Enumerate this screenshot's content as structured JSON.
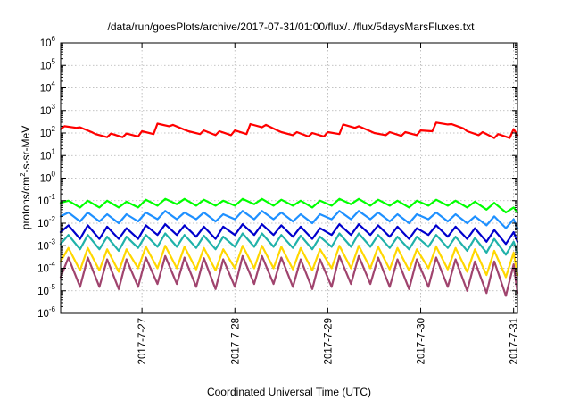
{
  "chart_data": {
    "type": "line",
    "title": "/data/run/goesPlots/archive/2017-07-31/01:00/flux/../flux/5daysMarsFluxes.txt",
    "xlabel": "Coordinated Universal Time (UTC)",
    "ylabel": "protons/cm2-s-sr-MeV",
    "ylabel_parts": {
      "before": "protons/cm",
      "sup": "2",
      "after": "-s-sr-MeV"
    },
    "yscale": "log",
    "ylim": [
      1e-06,
      1000000.0
    ],
    "y_ticks": [
      {
        "base": "10",
        "exp": "6"
      },
      {
        "base": "10",
        "exp": "5"
      },
      {
        "base": "10",
        "exp": "4"
      },
      {
        "base": "10",
        "exp": "3"
      },
      {
        "base": "10",
        "exp": "2"
      },
      {
        "base": "10",
        "exp": "1"
      },
      {
        "base": "10",
        "exp": "0"
      },
      {
        "base": "10",
        "exp": "-1"
      },
      {
        "base": "10",
        "exp": "-2"
      },
      {
        "base": "10",
        "exp": "-3"
      },
      {
        "base": "10",
        "exp": "-4"
      },
      {
        "base": "10",
        "exp": "-5"
      },
      {
        "base": "10",
        "exp": "-6"
      }
    ],
    "xlim": [
      "2017-07-26T03:00",
      "2017-07-31T01:00"
    ],
    "x_ticks": [
      "2017-7-27",
      "2017-7-28",
      "2017-7-29",
      "2017-7-30",
      "2017-7-31"
    ],
    "grid": true,
    "series": [
      {
        "color": "#ff0000",
        "x": [
          "2017-07-26T03:00",
          "2017-07-26T04:00",
          "2017-07-26T07:00",
          "2017-07-26T08:00",
          "2017-07-26T11:00",
          "2017-07-26T12:00",
          "2017-07-26T15:00",
          "2017-07-26T16:00",
          "2017-07-26T19:00",
          "2017-07-26T20:00",
          "2017-07-26T23:00",
          "2017-07-27T00:00",
          "2017-07-27T03:00",
          "2017-07-27T04:00",
          "2017-07-27T07:00",
          "2017-07-27T08:00",
          "2017-07-27T11:00",
          "2017-07-27T12:00",
          "2017-07-27T15:00",
          "2017-07-27T16:00",
          "2017-07-27T19:00",
          "2017-07-27T20:00",
          "2017-07-27T23:00",
          "2017-07-28T00:00",
          "2017-07-28T03:00",
          "2017-07-28T04:00",
          "2017-07-28T07:00",
          "2017-07-28T08:00",
          "2017-07-28T11:00",
          "2017-07-28T12:00",
          "2017-07-28T15:00",
          "2017-07-28T16:00",
          "2017-07-28T19:00",
          "2017-07-28T20:00",
          "2017-07-28T23:00",
          "2017-07-29T00:00",
          "2017-07-29T03:00",
          "2017-07-29T04:00",
          "2017-07-29T07:00",
          "2017-07-29T08:00",
          "2017-07-29T11:00",
          "2017-07-29T12:00",
          "2017-07-29T15:00",
          "2017-07-29T16:00",
          "2017-07-29T19:00",
          "2017-07-29T20:00",
          "2017-07-29T23:00",
          "2017-07-30T00:00",
          "2017-07-30T03:00",
          "2017-07-30T04:00",
          "2017-07-30T07:00",
          "2017-07-30T08:00",
          "2017-07-30T11:00",
          "2017-07-30T12:00",
          "2017-07-30T15:00",
          "2017-07-30T16:00",
          "2017-07-30T19:00",
          "2017-07-30T20:00",
          "2017-07-30T23:00",
          "2017-07-31T00:00",
          "2017-07-31T01:00"
        ],
        "values": [
          150,
          200,
          170,
          180,
          110,
          90,
          65,
          95,
          65,
          95,
          70,
          120,
          90,
          260,
          200,
          230,
          140,
          120,
          90,
          130,
          80,
          120,
          80,
          130,
          90,
          250,
          180,
          230,
          130,
          110,
          80,
          110,
          70,
          100,
          70,
          110,
          90,
          240,
          170,
          200,
          120,
          100,
          80,
          110,
          75,
          110,
          80,
          130,
          120,
          290,
          240,
          250,
          160,
          120,
          80,
          110,
          60,
          90,
          60,
          150,
          80
        ]
      },
      {
        "color": "#00ff00",
        "x": [
          "2017-07-26T03:00",
          "2017-07-26T05:00",
          "2017-07-26T08:00",
          "2017-07-26T10:00",
          "2017-07-26T13:00",
          "2017-07-26T15:00",
          "2017-07-26T18:00",
          "2017-07-26T20:00",
          "2017-07-26T23:00",
          "2017-07-27T01:00",
          "2017-07-27T04:00",
          "2017-07-27T06:00",
          "2017-07-27T09:00",
          "2017-07-27T11:00",
          "2017-07-27T14:00",
          "2017-07-27T16:00",
          "2017-07-27T19:00",
          "2017-07-27T21:00",
          "2017-07-28T00:00",
          "2017-07-28T02:00",
          "2017-07-28T05:00",
          "2017-07-28T07:00",
          "2017-07-28T10:00",
          "2017-07-28T12:00",
          "2017-07-28T15:00",
          "2017-07-28T17:00",
          "2017-07-28T20:00",
          "2017-07-28T22:00",
          "2017-07-29T01:00",
          "2017-07-29T03:00",
          "2017-07-29T06:00",
          "2017-07-29T08:00",
          "2017-07-29T11:00",
          "2017-07-29T13:00",
          "2017-07-29T16:00",
          "2017-07-29T18:00",
          "2017-07-29T21:00",
          "2017-07-29T23:00",
          "2017-07-30T02:00",
          "2017-07-30T04:00",
          "2017-07-30T07:00",
          "2017-07-30T09:00",
          "2017-07-30T12:00",
          "2017-07-30T14:00",
          "2017-07-30T17:00",
          "2017-07-30T19:00",
          "2017-07-30T22:00",
          "2017-07-31T00:00",
          "2017-07-31T01:00"
        ],
        "values": [
          0.08,
          0.1,
          0.05,
          0.1,
          0.05,
          0.1,
          0.05,
          0.09,
          0.05,
          0.11,
          0.06,
          0.12,
          0.07,
          0.12,
          0.06,
          0.11,
          0.06,
          0.1,
          0.06,
          0.12,
          0.07,
          0.12,
          0.06,
          0.11,
          0.06,
          0.1,
          0.05,
          0.1,
          0.06,
          0.12,
          0.07,
          0.12,
          0.06,
          0.11,
          0.06,
          0.1,
          0.05,
          0.1,
          0.06,
          0.11,
          0.06,
          0.1,
          0.05,
          0.09,
          0.04,
          0.08,
          0.03,
          0.05,
          0.03
        ]
      },
      {
        "color": "#1e90ff",
        "x": [
          "2017-07-26T03:00",
          "2017-07-26T05:00",
          "2017-07-26T08:00",
          "2017-07-26T10:00",
          "2017-07-26T13:00",
          "2017-07-26T15:00",
          "2017-07-26T18:00",
          "2017-07-26T20:00",
          "2017-07-26T23:00",
          "2017-07-27T01:00",
          "2017-07-27T04:00",
          "2017-07-27T06:00",
          "2017-07-27T09:00",
          "2017-07-27T11:00",
          "2017-07-27T14:00",
          "2017-07-27T16:00",
          "2017-07-27T19:00",
          "2017-07-27T21:00",
          "2017-07-28T00:00",
          "2017-07-28T02:00",
          "2017-07-28T05:00",
          "2017-07-28T07:00",
          "2017-07-28T10:00",
          "2017-07-28T12:00",
          "2017-07-28T15:00",
          "2017-07-28T17:00",
          "2017-07-28T20:00",
          "2017-07-28T22:00",
          "2017-07-29T01:00",
          "2017-07-29T03:00",
          "2017-07-29T06:00",
          "2017-07-29T08:00",
          "2017-07-29T11:00",
          "2017-07-29T13:00",
          "2017-07-29T16:00",
          "2017-07-29T18:00",
          "2017-07-29T21:00",
          "2017-07-29T23:00",
          "2017-07-30T02:00",
          "2017-07-30T04:00",
          "2017-07-30T07:00",
          "2017-07-30T09:00",
          "2017-07-30T12:00",
          "2017-07-30T14:00",
          "2017-07-30T17:00",
          "2017-07-30T19:00",
          "2017-07-30T22:00",
          "2017-07-31T00:00",
          "2017-07-31T01:00"
        ],
        "values": [
          0.02,
          0.03,
          0.012,
          0.03,
          0.012,
          0.025,
          0.01,
          0.025,
          0.012,
          0.03,
          0.015,
          0.035,
          0.015,
          0.03,
          0.015,
          0.03,
          0.012,
          0.025,
          0.015,
          0.035,
          0.015,
          0.035,
          0.015,
          0.03,
          0.012,
          0.025,
          0.01,
          0.025,
          0.015,
          0.035,
          0.015,
          0.035,
          0.015,
          0.03,
          0.012,
          0.025,
          0.01,
          0.025,
          0.015,
          0.03,
          0.012,
          0.025,
          0.01,
          0.02,
          0.008,
          0.02,
          0.006,
          0.015,
          0.006
        ]
      },
      {
        "color": "#0000cd",
        "x": [
          "2017-07-26T03:00",
          "2017-07-26T05:00",
          "2017-07-26T08:00",
          "2017-07-26T10:00",
          "2017-07-26T13:00",
          "2017-07-26T15:00",
          "2017-07-26T18:00",
          "2017-07-26T20:00",
          "2017-07-26T23:00",
          "2017-07-27T01:00",
          "2017-07-27T04:00",
          "2017-07-27T06:00",
          "2017-07-27T09:00",
          "2017-07-27T11:00",
          "2017-07-27T14:00",
          "2017-07-27T16:00",
          "2017-07-27T19:00",
          "2017-07-27T21:00",
          "2017-07-28T00:00",
          "2017-07-28T02:00",
          "2017-07-28T05:00",
          "2017-07-28T07:00",
          "2017-07-28T10:00",
          "2017-07-28T12:00",
          "2017-07-28T15:00",
          "2017-07-28T17:00",
          "2017-07-28T20:00",
          "2017-07-28T22:00",
          "2017-07-29T01:00",
          "2017-07-29T03:00",
          "2017-07-29T06:00",
          "2017-07-29T08:00",
          "2017-07-29T11:00",
          "2017-07-29T13:00",
          "2017-07-29T16:00",
          "2017-07-29T18:00",
          "2017-07-29T21:00",
          "2017-07-29T23:00",
          "2017-07-30T02:00",
          "2017-07-30T04:00",
          "2017-07-30T07:00",
          "2017-07-30T09:00",
          "2017-07-30T12:00",
          "2017-07-30T14:00",
          "2017-07-30T17:00",
          "2017-07-30T19:00",
          "2017-07-30T22:00",
          "2017-07-31T00:00",
          "2017-07-31T01:00"
        ],
        "values": [
          0.004,
          0.008,
          0.002,
          0.008,
          0.002,
          0.007,
          0.002,
          0.006,
          0.002,
          0.008,
          0.003,
          0.009,
          0.003,
          0.008,
          0.0025,
          0.007,
          0.002,
          0.007,
          0.003,
          0.009,
          0.003,
          0.009,
          0.003,
          0.008,
          0.0025,
          0.007,
          0.002,
          0.006,
          0.003,
          0.009,
          0.003,
          0.009,
          0.003,
          0.008,
          0.0025,
          0.007,
          0.002,
          0.006,
          0.003,
          0.008,
          0.0025,
          0.007,
          0.002,
          0.006,
          0.0015,
          0.005,
          0.0012,
          0.004,
          0.0015
        ]
      },
      {
        "color": "#20b2aa",
        "x": [
          "2017-07-26T03:00",
          "2017-07-26T05:00",
          "2017-07-26T08:00",
          "2017-07-26T10:00",
          "2017-07-26T13:00",
          "2017-07-26T15:00",
          "2017-07-26T18:00",
          "2017-07-26T20:00",
          "2017-07-26T23:00",
          "2017-07-27T01:00",
          "2017-07-27T04:00",
          "2017-07-27T06:00",
          "2017-07-27T09:00",
          "2017-07-27T11:00",
          "2017-07-27T14:00",
          "2017-07-27T16:00",
          "2017-07-27T19:00",
          "2017-07-27T21:00",
          "2017-07-28T00:00",
          "2017-07-28T02:00",
          "2017-07-28T05:00",
          "2017-07-28T07:00",
          "2017-07-28T10:00",
          "2017-07-28T12:00",
          "2017-07-28T15:00",
          "2017-07-28T17:00",
          "2017-07-28T20:00",
          "2017-07-28T22:00",
          "2017-07-29T01:00",
          "2017-07-29T03:00",
          "2017-07-29T06:00",
          "2017-07-29T08:00",
          "2017-07-29T11:00",
          "2017-07-29T13:00",
          "2017-07-29T16:00",
          "2017-07-29T18:00",
          "2017-07-29T21:00",
          "2017-07-29T23:00",
          "2017-07-30T02:00",
          "2017-07-30T04:00",
          "2017-07-30T07:00",
          "2017-07-30T09:00",
          "2017-07-30T12:00",
          "2017-07-30T14:00",
          "2017-07-30T17:00",
          "2017-07-30T19:00",
          "2017-07-30T22:00",
          "2017-07-31T00:00",
          "2017-07-31T01:00"
        ],
        "values": [
          0.0012,
          0.003,
          0.0007,
          0.003,
          0.0007,
          0.0025,
          0.0006,
          0.0025,
          0.0008,
          0.003,
          0.0009,
          0.0035,
          0.0009,
          0.003,
          0.0008,
          0.0028,
          0.0007,
          0.0025,
          0.0009,
          0.0035,
          0.0009,
          0.0035,
          0.0009,
          0.003,
          0.0008,
          0.0028,
          0.0007,
          0.0025,
          0.0009,
          0.0035,
          0.0009,
          0.0035,
          0.0009,
          0.003,
          0.0008,
          0.0025,
          0.0007,
          0.0025,
          0.0009,
          0.003,
          0.0008,
          0.0025,
          0.0006,
          0.0022,
          0.0005,
          0.002,
          0.0004,
          0.0015,
          0.0005
        ]
      },
      {
        "color": "#ffd700",
        "x": [
          "2017-07-26T03:00",
          "2017-07-26T05:00",
          "2017-07-26T08:00",
          "2017-07-26T10:00",
          "2017-07-26T13:00",
          "2017-07-26T15:00",
          "2017-07-26T18:00",
          "2017-07-26T20:00",
          "2017-07-26T23:00",
          "2017-07-27T01:00",
          "2017-07-27T04:00",
          "2017-07-27T06:00",
          "2017-07-27T09:00",
          "2017-07-27T11:00",
          "2017-07-27T14:00",
          "2017-07-27T16:00",
          "2017-07-27T19:00",
          "2017-07-27T21:00",
          "2017-07-28T00:00",
          "2017-07-28T02:00",
          "2017-07-28T05:00",
          "2017-07-28T07:00",
          "2017-07-28T10:00",
          "2017-07-28T12:00",
          "2017-07-28T15:00",
          "2017-07-28T17:00",
          "2017-07-28T20:00",
          "2017-07-28T22:00",
          "2017-07-29T01:00",
          "2017-07-29T03:00",
          "2017-07-29T06:00",
          "2017-07-29T08:00",
          "2017-07-29T11:00",
          "2017-07-29T13:00",
          "2017-07-29T16:00",
          "2017-07-29T18:00",
          "2017-07-29T21:00",
          "2017-07-29T23:00",
          "2017-07-30T02:00",
          "2017-07-30T04:00",
          "2017-07-30T07:00",
          "2017-07-30T09:00",
          "2017-07-30T12:00",
          "2017-07-30T14:00",
          "2017-07-30T17:00",
          "2017-07-30T19:00",
          "2017-07-30T22:00",
          "2017-07-31T00:00",
          "2017-07-31T01:00"
        ],
        "values": [
          0.0002,
          0.0008,
          8e-05,
          0.0008,
          8e-05,
          0.0007,
          7e-05,
          0.0007,
          0.0001,
          0.0009,
          0.0001,
          0.001,
          0.0001,
          0.0009,
          9e-05,
          0.0008,
          8e-05,
          0.0007,
          0.0001,
          0.001,
          0.0001,
          0.001,
          0.0001,
          0.0009,
          9e-05,
          0.0008,
          8e-05,
          0.0007,
          0.0001,
          0.001,
          0.0001,
          0.001,
          0.0001,
          0.0009,
          9e-05,
          0.0008,
          8e-05,
          0.0007,
          0.0001,
          0.0009,
          9e-05,
          0.0008,
          7e-05,
          0.0007,
          5e-05,
          0.0006,
          4e-05,
          0.0005,
          5e-05
        ]
      },
      {
        "color": "#a0446e",
        "x": [
          "2017-07-26T03:00",
          "2017-07-26T05:00",
          "2017-07-26T08:00",
          "2017-07-26T10:00",
          "2017-07-26T13:00",
          "2017-07-26T15:00",
          "2017-07-26T18:00",
          "2017-07-26T20:00",
          "2017-07-26T23:00",
          "2017-07-27T01:00",
          "2017-07-27T04:00",
          "2017-07-27T06:00",
          "2017-07-27T09:00",
          "2017-07-27T11:00",
          "2017-07-27T14:00",
          "2017-07-27T16:00",
          "2017-07-27T19:00",
          "2017-07-27T21:00",
          "2017-07-28T00:00",
          "2017-07-28T02:00",
          "2017-07-28T05:00",
          "2017-07-28T07:00",
          "2017-07-28T10:00",
          "2017-07-28T12:00",
          "2017-07-28T15:00",
          "2017-07-28T17:00",
          "2017-07-28T20:00",
          "2017-07-28T22:00",
          "2017-07-29T01:00",
          "2017-07-29T03:00",
          "2017-07-29T06:00",
          "2017-07-29T08:00",
          "2017-07-29T11:00",
          "2017-07-29T13:00",
          "2017-07-29T16:00",
          "2017-07-29T18:00",
          "2017-07-29T21:00",
          "2017-07-29T23:00",
          "2017-07-30T02:00",
          "2017-07-30T04:00",
          "2017-07-30T07:00",
          "2017-07-30T09:00",
          "2017-07-30T12:00",
          "2017-07-30T14:00",
          "2017-07-30T17:00",
          "2017-07-30T19:00",
          "2017-07-30T22:00",
          "2017-07-31T00:00",
          "2017-07-31T01:00"
        ],
        "values": [
          4e-05,
          0.0003,
          1.5e-05,
          0.0003,
          1.5e-05,
          0.00025,
          1.2e-05,
          0.00025,
          1.5e-05,
          0.0003,
          2e-05,
          0.00035,
          2e-05,
          0.0003,
          1.5e-05,
          0.00028,
          1.2e-05,
          0.00025,
          1.5e-05,
          0.00035,
          2e-05,
          0.00035,
          2e-05,
          0.0003,
          1.5e-05,
          0.00025,
          1.2e-05,
          0.00025,
          1.5e-05,
          0.00035,
          2e-05,
          0.00035,
          2e-05,
          0.0003,
          1.5e-05,
          0.00025,
          1.2e-05,
          0.00025,
          1.5e-05,
          0.0003,
          1.5e-05,
          0.00025,
          1e-05,
          0.0002,
          8e-06,
          0.0002,
          6e-06,
          0.00015,
          8e-06
        ]
      }
    ]
  }
}
